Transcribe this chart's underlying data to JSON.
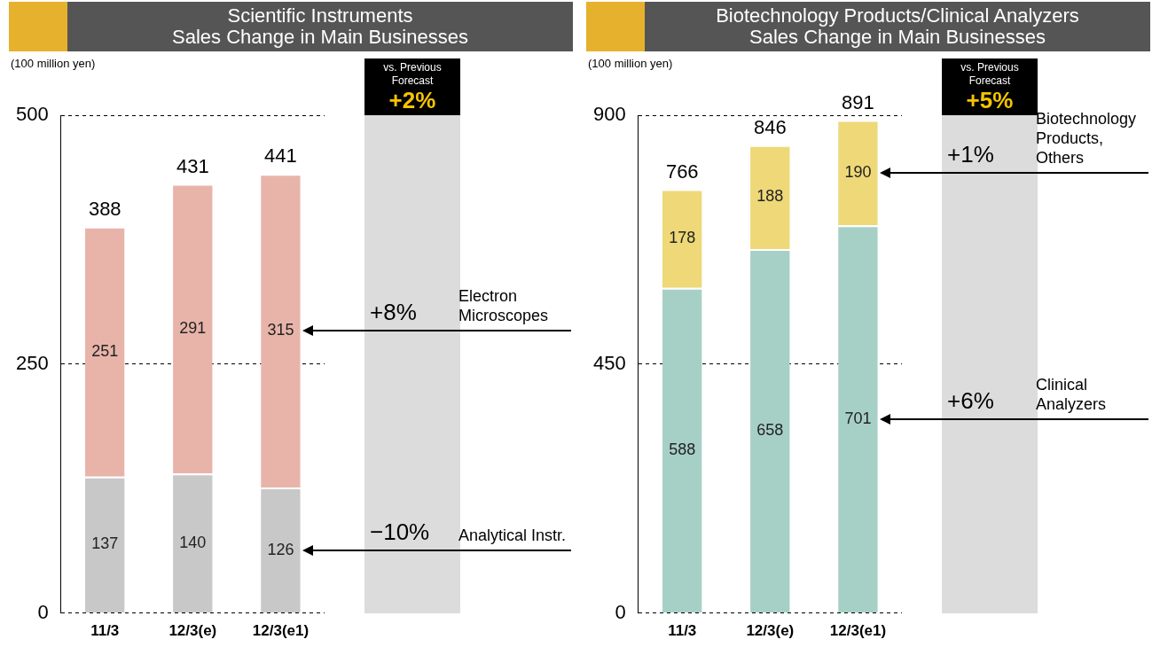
{
  "chart_data": [
    {
      "type": "bar",
      "stacked": true,
      "title": "Scientific Instruments\nSales Change in Main Businesses",
      "ylabel": "(100 million yen)",
      "categories": [
        "11/3",
        "12/3(e)",
        "12/3(e1)"
      ],
      "series": [
        {
          "name": "Analytical Instr.",
          "color": "#c8c8c8",
          "values": [
            137,
            140,
            126
          ]
        },
        {
          "name": "Electron Microscopes",
          "color": "#e8b4aa",
          "values": [
            251,
            291,
            315
          ]
        }
      ],
      "totals": [
        "388",
        "431",
        "441"
      ],
      "data_labels": true,
      "ylim": [
        0,
        500
      ],
      "yticks": [
        0,
        250,
        500
      ],
      "grid": "y",
      "annotations": [
        "vs. Previous Forecast",
        "+2%",
        "−10%",
        "+8%"
      ]
    },
    {
      "type": "bar",
      "stacked": true,
      "title": "Biotechnology Products/Clinical Analyzers\nSales Change in Main Businesses",
      "ylabel": "(100 million yen)",
      "categories": [
        "11/3",
        "12/3(e)",
        "12/3(e1)"
      ],
      "series": [
        {
          "name": "Clinical Analyzers",
          "color": "#a6d0c6",
          "values": [
            588,
            658,
            701
          ]
        },
        {
          "name": "Biotechnology Products, Others",
          "color": "#eed878",
          "values": [
            178,
            188,
            190
          ]
        }
      ],
      "totals": [
        "766",
        "846",
        "891"
      ],
      "data_labels": true,
      "ylim": [
        0,
        900
      ],
      "yticks": [
        0,
        450,
        900
      ],
      "grid": "y",
      "annotations": [
        "vs. Previous Forecast",
        "+5%",
        "+6%",
        "+1%"
      ]
    }
  ]
}
